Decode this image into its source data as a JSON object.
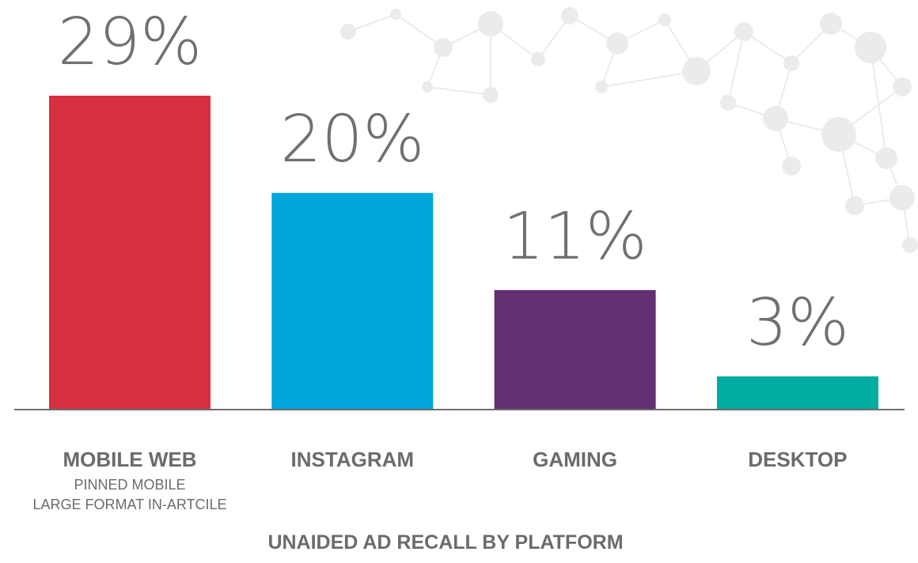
{
  "chart_data": {
    "type": "bar",
    "title": "UNAIDED AD RECALL BY PLATFORM",
    "categories": [
      "MOBILE WEB",
      "INSTAGRAM",
      "GAMING",
      "DESKTOP"
    ],
    "category_sublabels": [
      [
        "PINNED MOBILE",
        "LARGE FORMAT IN-ARTCILE"
      ],
      [],
      [],
      []
    ],
    "values": [
      29,
      20,
      11,
      3
    ],
    "value_labels": [
      "29%",
      "20%",
      "11%",
      "3%"
    ],
    "bar_colors": [
      "#d8303e",
      "#00a5dc",
      "#622f71",
      "#00ab9f"
    ],
    "ylim": [
      0,
      29
    ],
    "grid": false,
    "legend": "none"
  },
  "colors": {
    "axis": "#6d6d6d",
    "value_text": "#707070",
    "label_text": "#6b6b6b",
    "network_decoration": "#ebebeb"
  }
}
